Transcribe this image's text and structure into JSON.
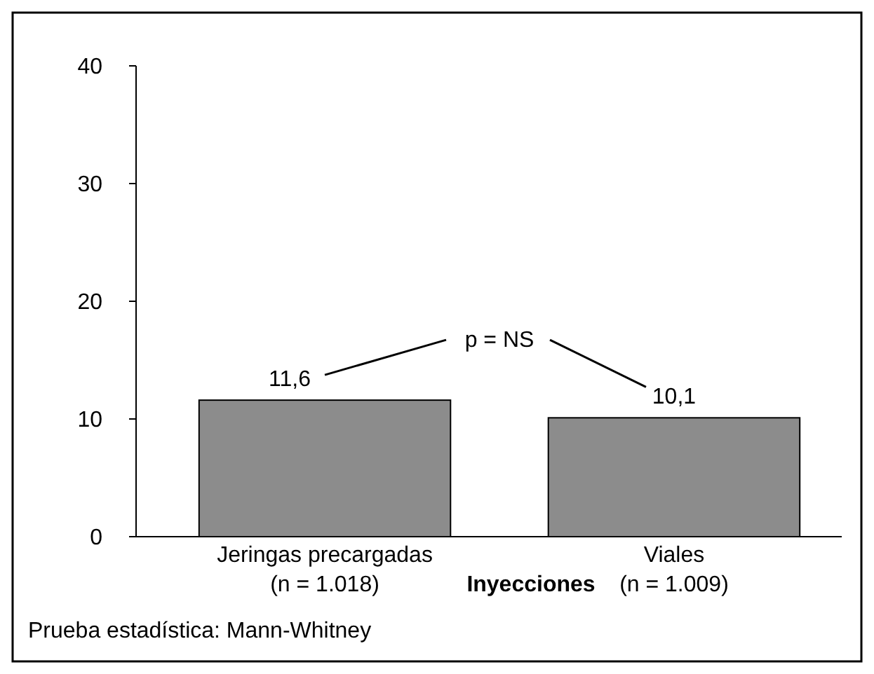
{
  "chart_data": {
    "type": "bar",
    "categories": [
      "Jeringas precargadas\n(n = 1.018)",
      "Viales\n(n = 1.009)"
    ],
    "values": [
      11.6,
      10.1
    ],
    "value_labels": [
      "11,6",
      "10,1"
    ],
    "color": "#8c8c8c",
    "xlabel": "Inyecciones",
    "ylim": [
      0,
      40
    ],
    "yticks": [
      0,
      10,
      20,
      30,
      40
    ],
    "grid": false,
    "annotations": [
      "p = NS",
      "Prueba estadística: Mann-Whitney"
    ]
  }
}
